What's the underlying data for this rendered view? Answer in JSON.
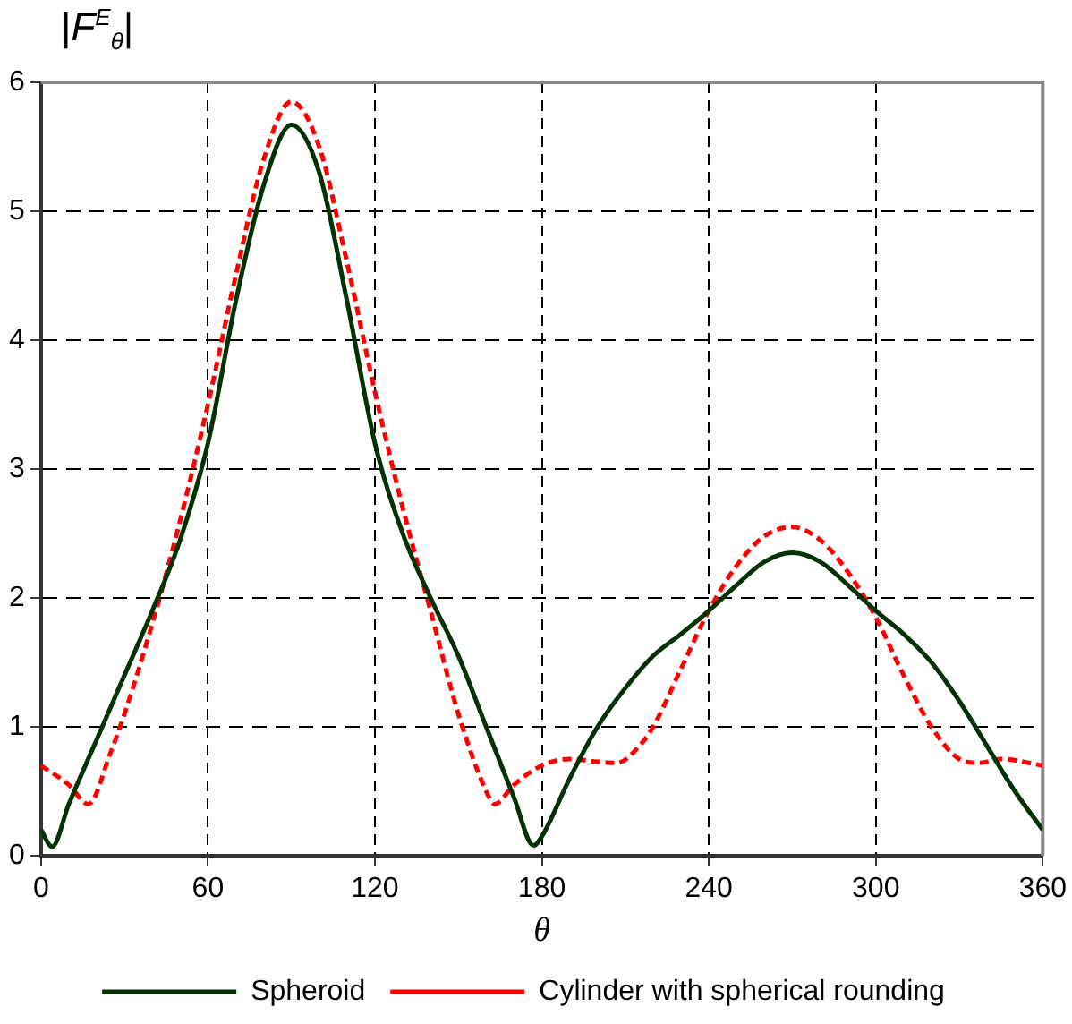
{
  "chart_data": {
    "type": "line",
    "ylabel": "|F$^{E}$$_{θ}$|",
    "xlabel": "θ",
    "xlim": [
      0,
      360
    ],
    "xticks": [
      0,
      60,
      120,
      180,
      240,
      300,
      360
    ],
    "ylim": [
      0,
      6
    ],
    "yticks": [
      0,
      1,
      2,
      3,
      4,
      5,
      6
    ],
    "grid": true,
    "legend": "bottom",
    "marker": "none",
    "series": [
      {
        "name": "Spheroid",
        "color": "#003300",
        "line_style": "solid",
        "x": [
          0,
          4,
          10,
          20,
          30,
          40,
          50,
          60,
          70,
          80,
          90,
          100,
          110,
          120,
          130,
          140,
          150,
          160,
          170,
          177,
          180,
          190,
          200,
          210,
          220,
          230,
          240,
          250,
          260,
          270,
          280,
          290,
          300,
          310,
          320,
          330,
          340,
          350,
          360
        ],
        "values": [
          0.2,
          0.07,
          0.4,
          0.9,
          1.4,
          1.9,
          2.45,
          3.2,
          4.3,
          5.2,
          5.67,
          5.3,
          4.3,
          3.2,
          2.5,
          2.0,
          1.55,
          1.0,
          0.45,
          0.08,
          0.15,
          0.6,
          1.0,
          1.3,
          1.55,
          1.72,
          1.9,
          2.1,
          2.28,
          2.35,
          2.28,
          2.1,
          1.9,
          1.72,
          1.5,
          1.2,
          0.85,
          0.5,
          0.2
        ]
      },
      {
        "name": "Cylinder with spherical rounding",
        "color": "#ff0000",
        "line_style": "dashed",
        "x": [
          0,
          10,
          17,
          25,
          30,
          40,
          50,
          60,
          70,
          80,
          90,
          100,
          110,
          120,
          130,
          140,
          150,
          160,
          163,
          170,
          180,
          190,
          200,
          207,
          215,
          220,
          230,
          240,
          250,
          260,
          270,
          280,
          290,
          300,
          310,
          320,
          330,
          337,
          345,
          360
        ],
        "values": [
          0.7,
          0.55,
          0.4,
          0.8,
          1.1,
          1.8,
          2.6,
          3.5,
          4.5,
          5.4,
          5.85,
          5.5,
          4.6,
          3.6,
          2.7,
          1.9,
          1.1,
          0.5,
          0.4,
          0.55,
          0.7,
          0.75,
          0.73,
          0.72,
          0.85,
          1.0,
          1.45,
          1.9,
          2.25,
          2.48,
          2.55,
          2.45,
          2.2,
          1.85,
          1.4,
          1.0,
          0.75,
          0.72,
          0.75,
          0.7
        ]
      }
    ]
  }
}
